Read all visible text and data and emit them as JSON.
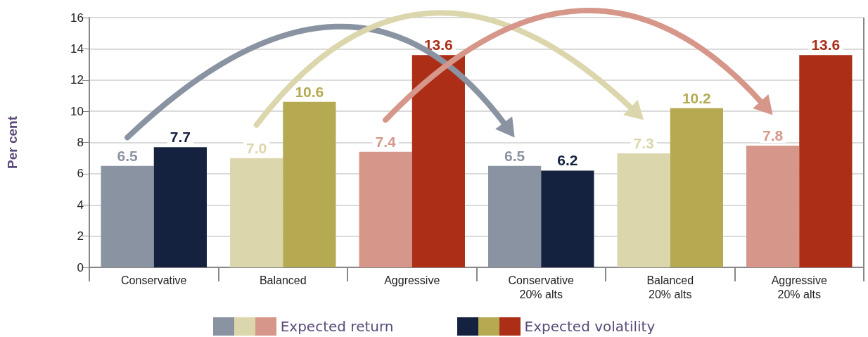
{
  "chart_data": {
    "type": "bar",
    "ylabel": "Per cent",
    "categories": [
      "Conservative",
      "Balanced",
      "Aggressive",
      "Conservative\n20% alts",
      "Balanced\n20% alts",
      "Aggressive\n20% alts"
    ],
    "series": [
      {
        "name": "Expected return",
        "colors": [
          "#8a93a2",
          "#dcd6ad",
          "#d6978a",
          "#8a93a2",
          "#dcd6ad",
          "#d6978a"
        ],
        "values": [
          6.5,
          7.0,
          7.4,
          6.5,
          7.3,
          7.8
        ],
        "value_labels": [
          "6.5",
          "7.0",
          "7.4",
          "6.5",
          "7.3",
          "7.8"
        ]
      },
      {
        "name": "Expected volatility",
        "colors": [
          "#14223f",
          "#b5aa52",
          "#ac2e17",
          "#14223f",
          "#b5aa52",
          "#ac2e17"
        ],
        "values": [
          7.7,
          10.6,
          13.6,
          6.2,
          10.2,
          13.6
        ],
        "value_labels": [
          "7.7",
          "10.6",
          "13.6",
          "6.2",
          "10.2",
          "13.6"
        ]
      }
    ],
    "ylim": [
      0,
      16
    ],
    "yticks": [
      0,
      2,
      4,
      6,
      8,
      10,
      12,
      14,
      16
    ],
    "grid": "y",
    "legend": "bottom"
  }
}
